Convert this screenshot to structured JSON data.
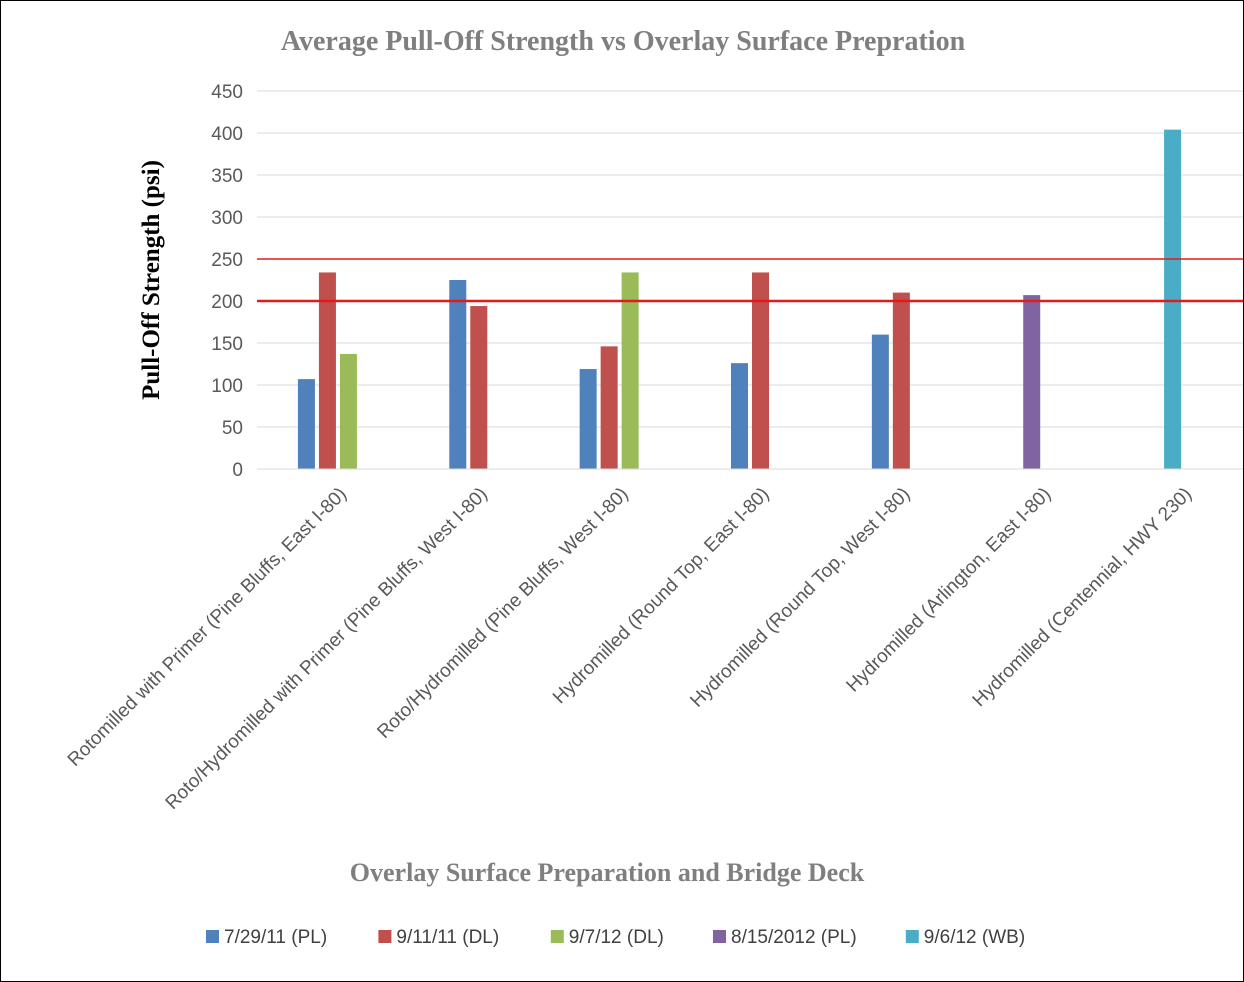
{
  "chart_data": {
    "type": "bar",
    "title": "Average Pull-Off Strength vs Overlay Surface Prepration",
    "xlabel": "Overlay Surface Preparation and Bridge Deck",
    "ylabel": "Pull-Off Strength (psi)",
    "ylim": [
      0,
      450
    ],
    "yticks": [
      "0",
      "50",
      "100",
      "150",
      "200",
      "250",
      "300",
      "350",
      "400",
      "450"
    ],
    "grid": true,
    "legend_position": "bottom",
    "categories": [
      "Rotomilled with Primer (Pine Bluffs, East I-80)",
      "Roto/Hydromilled with Primer (Pine Bluffs, West I-80)",
      "Roto/Hydromilled (Pine Bluffs, West I-80)",
      "Hydromilled (Round Top, East I-80)",
      "Hydromilled (Round Top, West I-80)",
      "Hydromilled (Arlington, East I-80)",
      "Hydromilled (Centennial, HWY 230)"
    ],
    "series": [
      {
        "name": "7/29/11 (PL)",
        "color": "#4f81bd",
        "values": [
          107,
          225,
          119,
          126,
          160,
          null,
          null
        ]
      },
      {
        "name": "9/11/11 (DL)",
        "color": "#c0504d",
        "values": [
          234,
          194,
          146,
          234,
          210,
          null,
          null
        ]
      },
      {
        "name": "9/7/12 (DL)",
        "color": "#9bbb59",
        "values": [
          137,
          null,
          234,
          null,
          null,
          null,
          null
        ]
      },
      {
        "name": "8/15/2012 (PL)",
        "color": "#8064a2",
        "values": [
          null,
          null,
          null,
          null,
          null,
          207,
          null
        ]
      },
      {
        "name": "9/6/12 (WB)",
        "color": "#4bacc6",
        "values": [
          null,
          null,
          null,
          null,
          null,
          null,
          404
        ]
      }
    ],
    "reference_lines": [
      {
        "value": 250,
        "color": "#e31a1c"
      },
      {
        "value": 200,
        "color": "#e31a1c"
      }
    ]
  }
}
